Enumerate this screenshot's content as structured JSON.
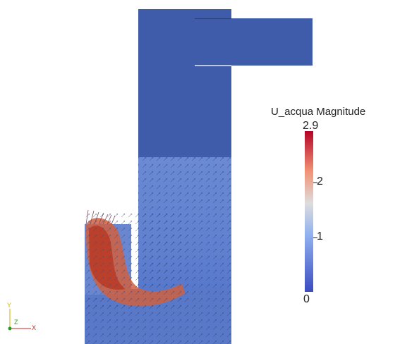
{
  "scalar_bar": {
    "title": "U_acqua Magnitude",
    "max_label": "2.9",
    "tick_2": "2",
    "tick_1": "1",
    "min_label": "0"
  },
  "orientation_axes": {
    "x_label": "X",
    "y_label": "Y",
    "z_label": "Z"
  },
  "colors": {
    "low": "#3b4cc0",
    "mid": "#dddddd",
    "high": "#b40426",
    "domain_fill": "#3f5caa"
  }
}
